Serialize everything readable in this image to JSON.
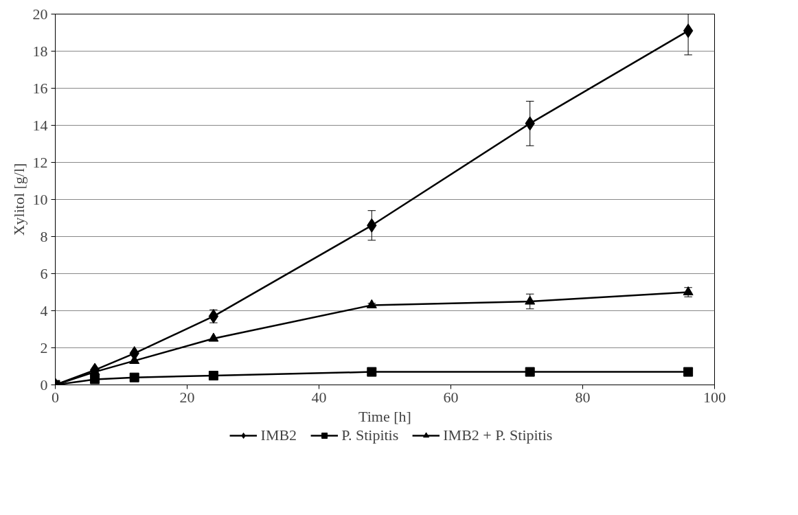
{
  "chart_data": {
    "type": "line",
    "xlabel": "Time [h]",
    "ylabel": "Xylitol [g/l]",
    "xlim": [
      0,
      100
    ],
    "xticks": [
      0,
      20,
      40,
      60,
      80,
      100
    ],
    "ylim": [
      0,
      20
    ],
    "yticks": [
      0,
      2,
      4,
      6,
      8,
      10,
      12,
      14,
      16,
      18,
      20
    ],
    "grid": "y",
    "legend": "bottom",
    "line_style": "solid",
    "series": [
      {
        "name": "IMB2",
        "color": "#000000",
        "marker": "diamond",
        "x": [
          0,
          6,
          12,
          24,
          48,
          72,
          96
        ],
        "values": [
          0,
          0.8,
          1.7,
          3.7,
          8.6,
          14.1,
          19.1
        ],
        "errors": [
          null,
          null,
          null,
          0.35,
          0.8,
          1.2,
          [
            17.8,
            20
          ]
        ]
      },
      {
        "name": "P. Stipitis",
        "color": "#000000",
        "marker": "square",
        "x": [
          0,
          6,
          12,
          24,
          48,
          72,
          96
        ],
        "values": [
          0,
          0.3,
          0.4,
          0.5,
          0.7,
          0.7,
          0.7
        ]
      },
      {
        "name": "IMB2 + P. Stipitis",
        "color": "#000000",
        "marker": "triangle",
        "x": [
          0,
          6,
          12,
          24,
          48,
          72,
          96
        ],
        "values": [
          0,
          0.7,
          1.3,
          2.5,
          4.3,
          4.5,
          5.0
        ],
        "errors": [
          null,
          null,
          null,
          null,
          0.1,
          0.4,
          0.25
        ]
      }
    ]
  }
}
